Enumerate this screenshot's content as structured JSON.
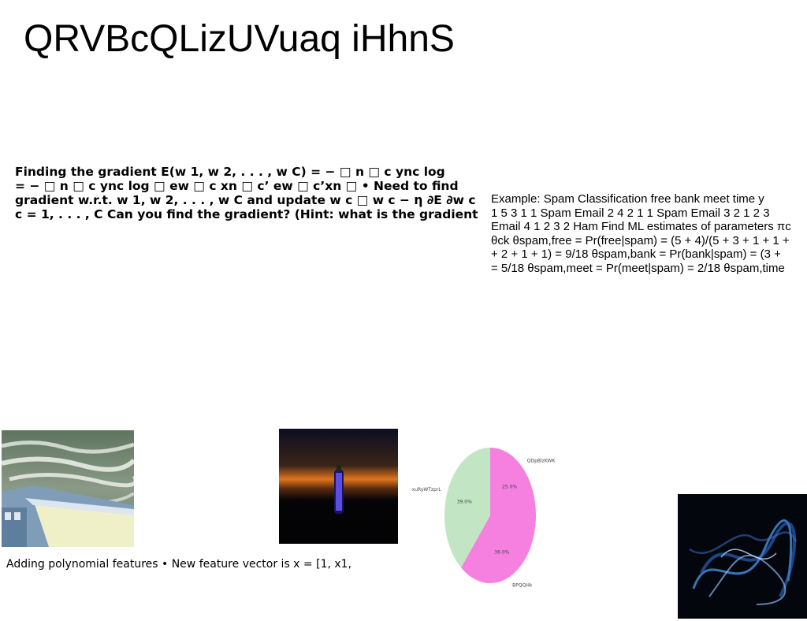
{
  "slide": {
    "title": "QRVBcQLizUVuaq iHhnS",
    "gradient_text": "Finding the gradient E(w 1, w 2, . . . , w C) = − □ n □ c ync log\n= − □ n □ c ync log □ ew □ c xn □ c’ ew □ c’xn □ • Need to find\ngradient w.r.t. w 1, w 2, . . . , w C and update w c □ w c − η ∂E ∂w c\nc = 1, . . . , C Can you find the gradient? (Hint: what is the gradient",
    "spam_text": "Example: Spam Classification free bank meet time y\n1 5 3 1 1 Spam Email 2 4 2 1 1 Spam Email 3 2 1 2 3\nEmail 4 1 2 3 2 Ham Find ML estimates of parameters πc\nθck θspam,free = Pr(free|spam) = (5 + 4)/(5 + 3 + 1 + 1 +\n+ 2 + 1 + 1) = 9/18 θspam,bank = Pr(bank|spam) = (3 +\n= 5/18 θspam,meet = Pr(meet|spam) = 2/18 θspam,time",
    "poly_text": "Adding polynomial features • New feature vector is x = [1, x1,"
  },
  "images": {
    "sea": "sea-harbor-photo",
    "tower": "glowing-tower-night-photo",
    "smoke": "blue-smoke-photo"
  },
  "chart_data": {
    "type": "pie",
    "slices": [
      {
        "label": "QDpBlzKWK",
        "value": 25.0,
        "pct_label": "25.0%",
        "color": "#f580e0"
      },
      {
        "label": "BPQQHk",
        "value": 36.0,
        "pct_label": "36.0%",
        "color": "#f580e0"
      },
      {
        "label": "xuRyWTzprL",
        "value": 39.0,
        "pct_label": "39.0%",
        "color": "#c2e6c4"
      }
    ],
    "start_angle_deg": 90,
    "direction": "clockwise"
  }
}
